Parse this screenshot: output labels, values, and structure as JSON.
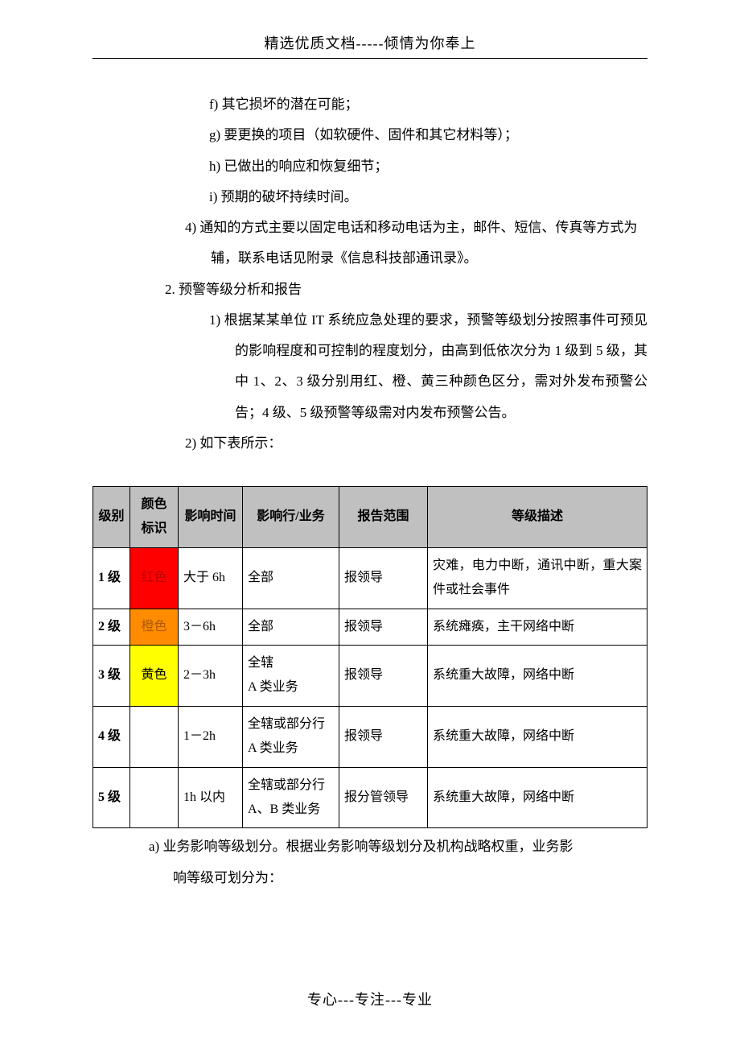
{
  "header": "精选优质文档-----倾情为你奉上",
  "footer": "专心---专注---专业",
  "body_lines": [
    {
      "cls": "indent-a",
      "text": "f)  其它损坏的潜在可能；"
    },
    {
      "cls": "indent-a",
      "text": "g)  要更换的项目（如软硬件、固件和其它材料等）；"
    },
    {
      "cls": "indent-a",
      "text": "h)  已做出的响应和恢复细节；"
    },
    {
      "cls": "indent-a",
      "text": "i)  预期的破坏持续时间。"
    },
    {
      "cls": "hang-b",
      "text": "4)  通知的方式主要以固定电话和移动电话为主，邮件、短信、传真等方式为辅，联系电话见附录《信息科技部通讯录》。"
    },
    {
      "cls": "indent-c",
      "text": "2.  预警等级分析和报告"
    },
    {
      "cls": "hang-d",
      "text": "1)  根据某某单位 IT 系统应急处理的要求，预警等级划分按照事件可预见的影响程度和可控制的程度划分，由高到低依次分为 1 级到 5 级，其中 1、2、3 级分别用红、橙、黄三种颜色区分，需对外发布预警公告；4 级、5 级预警等级需对内发布预警公告。"
    },
    {
      "cls": "indent-b",
      "text": "2)  如下表所示："
    }
  ],
  "table": {
    "columns": [
      "级别",
      "颜色标识",
      "影响时间",
      "影响行/业务",
      "报告范围",
      "等级描述"
    ],
    "col_widths_css": [
      "col-level",
      "col-color",
      "col-time",
      "col-biz",
      "col-rep",
      ""
    ],
    "header_bg": "#c0c0c0",
    "rows": [
      {
        "level": "1 级",
        "color_label": "红色",
        "color_bg": "#ff0000",
        "color_fg": "#c00000",
        "time": "大于 6h",
        "biz": "全部",
        "report": "报领导",
        "desc": "灾难，电力中断，通讯中断，重大案件或社会事件"
      },
      {
        "level": "2 级",
        "color_label": "橙色",
        "color_bg": "#ff8c00",
        "color_fg": "#b25900",
        "time": "3－6h",
        "biz": "全部",
        "report": "报领导",
        "desc": "系统瘫痪，主干网络中断"
      },
      {
        "level": "3 级",
        "color_label": "黄色",
        "color_bg": "#ffff00",
        "color_fg": "#000000",
        "time": "2－3h",
        "biz": "全辖\nA 类业务",
        "report": "报领导",
        "desc": "系统重大故障，网络中断"
      },
      {
        "level": "4 级",
        "color_label": "",
        "color_bg": "#ffffff",
        "color_fg": "#000000",
        "time": "1－2h",
        "biz": "全辖或部分行\nA 类业务",
        "report": "报领导",
        "desc": "系统重大故障，网络中断"
      },
      {
        "level": "5 级",
        "color_label": "",
        "color_bg": "#ffffff",
        "color_fg": "#000000",
        "time": "1h 以内",
        "biz": "全辖或部分行\nA、B 类业务",
        "report": "报分管领导",
        "desc": "系统重大故障，网络中断"
      }
    ]
  },
  "after_table": [
    {
      "cls": "l1",
      "text": "a)  业务影响等级划分。根据业务影响等级划分及机构战略权重，业务影"
    },
    {
      "cls": "l2",
      "text": "响等级可划分为："
    }
  ]
}
